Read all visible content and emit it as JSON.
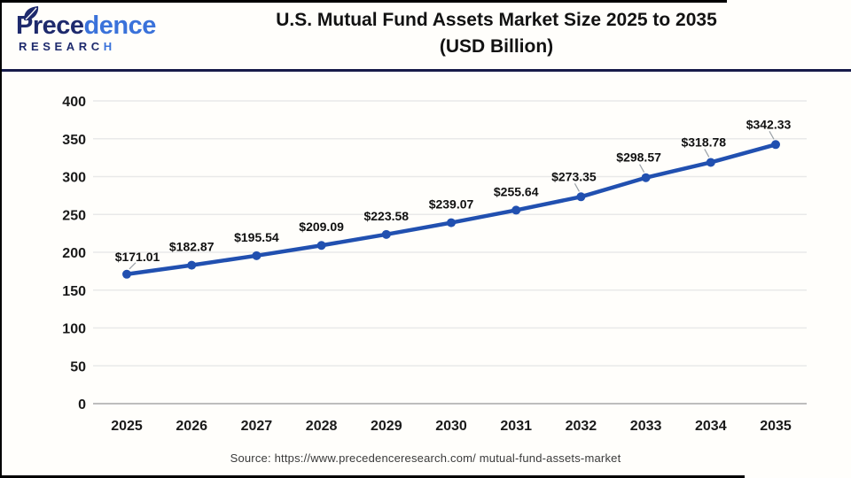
{
  "header": {
    "logo": {
      "name_dark": "Prece",
      "name_blue": "dence",
      "sub_dark": "RESEARC",
      "sub_blue": "H"
    },
    "title_line1": "U.S. Mutual Fund Assets Market Size 2025 to 2035",
    "title_line2": "(USD Billion)"
  },
  "chart_data": {
    "type": "line",
    "title": "U.S. Mutual Fund Assets Market Size 2025 to 2035 (USD Billion)",
    "categories": [
      "2025",
      "2026",
      "2027",
      "2028",
      "2029",
      "2030",
      "2031",
      "2032",
      "2033",
      "2034",
      "2035"
    ],
    "values": [
      171.01,
      182.87,
      195.54,
      209.09,
      223.58,
      239.07,
      255.64,
      273.35,
      298.57,
      318.78,
      342.33
    ],
    "labels": [
      "$171.01",
      "$182.87",
      "$195.54",
      "$209.09",
      "$223.58",
      "$239.07",
      "$255.64",
      "$273.35",
      "$298.57",
      "$318.78",
      "$342.33"
    ],
    "ylim": [
      0,
      400
    ],
    "yticks": [
      0,
      50,
      100,
      150,
      200,
      250,
      300,
      350,
      400
    ],
    "grid": true,
    "legend": "none",
    "line_color": "#2150b0",
    "marker_color": "#2150b0",
    "grid_color": "#e9e9e9",
    "axis_line_color": "#bdbdbd",
    "leader_line_color": "#9aa0a6",
    "tick_color": "#1a1a1a"
  },
  "footer": {
    "source": "Source: https://www.precedenceresearch.com/ mutual-fund-assets-market"
  }
}
